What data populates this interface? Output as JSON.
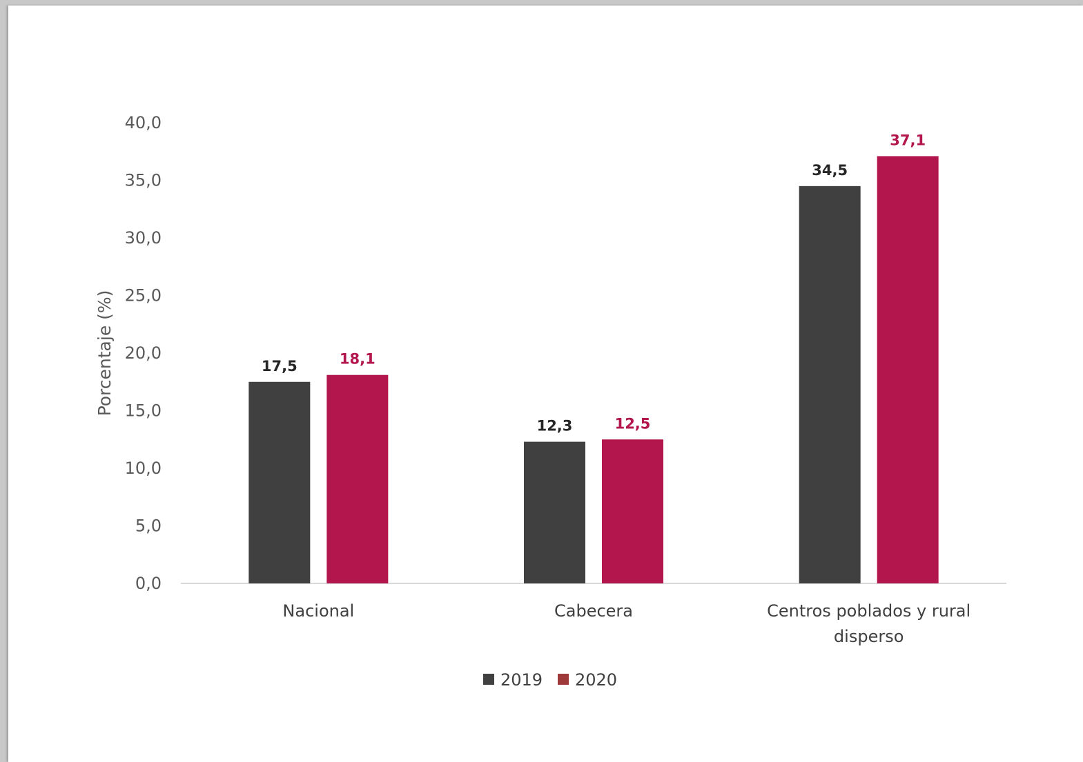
{
  "chart_data": {
    "type": "bar",
    "title": "",
    "xlabel": "",
    "ylabel": "Porcentaje (%)",
    "ylim": [
      0,
      40
    ],
    "yticks": [
      "0,0",
      "5,0",
      "10,0",
      "15,0",
      "20,0",
      "25,0",
      "30,0",
      "35,0",
      "40,0"
    ],
    "categories": [
      [
        "Nacional"
      ],
      [
        "Cabecera"
      ],
      [
        "Centros poblados y rural",
        "disperso"
      ]
    ],
    "series": [
      {
        "name": "2019",
        "color": "#404040",
        "label_color": "#262626",
        "legend_color": "#404040",
        "values": [
          17.5,
          12.3,
          34.5
        ],
        "labels": [
          "17,5",
          "12,3",
          "34,5"
        ]
      },
      {
        "name": "2020",
        "color": "#B3154D",
        "label_color": "#B3154D",
        "legend_color": "#9E3A3A",
        "values": [
          18.1,
          12.5,
          37.1
        ],
        "labels": [
          "18,1",
          "12,5",
          "37,1"
        ]
      }
    ],
    "grid": false,
    "legend_position": "bottom"
  }
}
